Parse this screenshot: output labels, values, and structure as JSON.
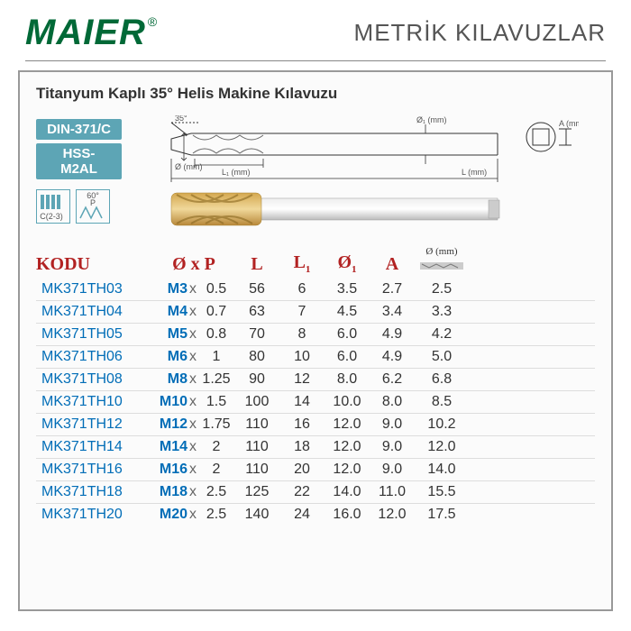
{
  "brand": "MAIER",
  "registered": "®",
  "page_title": "METRİK KILAVUZLAR",
  "subtitle": "Titanyum Kaplı 35° Helis Makine Kılavuzu",
  "badges": {
    "din": "DIN-371/C",
    "material": "HSS-M2AL"
  },
  "icons": {
    "c_label": "C(2-3)",
    "angle": "60°",
    "p": "P"
  },
  "diagram_labels": {
    "angle": "35°",
    "phi": "Ø (mm)",
    "l1": "L₁ (mm)",
    "l": "L (mm)",
    "phi1": "Ø₁ (mm)",
    "a": "A (mm)"
  },
  "columns": {
    "code": "KODU",
    "size": "Ø x P",
    "l": "L",
    "l1_main": "L",
    "l1_sub": "1",
    "d1_main": "Ø",
    "d1_sub": "1",
    "a": "A",
    "drill": "Ø (mm)"
  },
  "rows": [
    {
      "code": "MK371TH03",
      "m": "M3",
      "p": "0.5",
      "l": "56",
      "l1": "6",
      "d1": "3.5",
      "a": "2.7",
      "drill": "2.5"
    },
    {
      "code": "MK371TH04",
      "m": "M4",
      "p": "0.7",
      "l": "63",
      "l1": "7",
      "d1": "4.5",
      "a": "3.4",
      "drill": "3.3"
    },
    {
      "code": "MK371TH05",
      "m": "M5",
      "p": "0.8",
      "l": "70",
      "l1": "8",
      "d1": "6.0",
      "a": "4.9",
      "drill": "4.2"
    },
    {
      "code": "MK371TH06",
      "m": "M6",
      "p": "1",
      "l": "80",
      "l1": "10",
      "d1": "6.0",
      "a": "4.9",
      "drill": "5.0"
    },
    {
      "code": "MK371TH08",
      "m": "M8",
      "p": "1.25",
      "l": "90",
      "l1": "12",
      "d1": "8.0",
      "a": "6.2",
      "drill": "6.8"
    },
    {
      "code": "MK371TH10",
      "m": "M10",
      "p": "1.5",
      "l": "100",
      "l1": "14",
      "d1": "10.0",
      "a": "8.0",
      "drill": "8.5"
    },
    {
      "code": "MK371TH12",
      "m": "M12",
      "p": "1.75",
      "l": "110",
      "l1": "16",
      "d1": "12.0",
      "a": "9.0",
      "drill": "10.2"
    },
    {
      "code": "MK371TH14",
      "m": "M14",
      "p": "2",
      "l": "110",
      "l1": "18",
      "d1": "12.0",
      "a": "9.0",
      "drill": "12.0"
    },
    {
      "code": "MK371TH16",
      "m": "M16",
      "p": "2",
      "l": "110",
      "l1": "20",
      "d1": "12.0",
      "a": "9.0",
      "drill": "14.0"
    },
    {
      "code": "MK371TH18",
      "m": "M18",
      "p": "2.5",
      "l": "125",
      "l1": "22",
      "d1": "14.0",
      "a": "11.0",
      "drill": "15.5"
    },
    {
      "code": "MK371TH20",
      "m": "M20",
      "p": "2.5",
      "l": "140",
      "l1": "24",
      "d1": "16.0",
      "a": "12.0",
      "drill": "17.5"
    }
  ],
  "colors": {
    "brand": "#006937",
    "badge": "#5DA5B5",
    "header": "#B22222",
    "link": "#006DB7"
  }
}
